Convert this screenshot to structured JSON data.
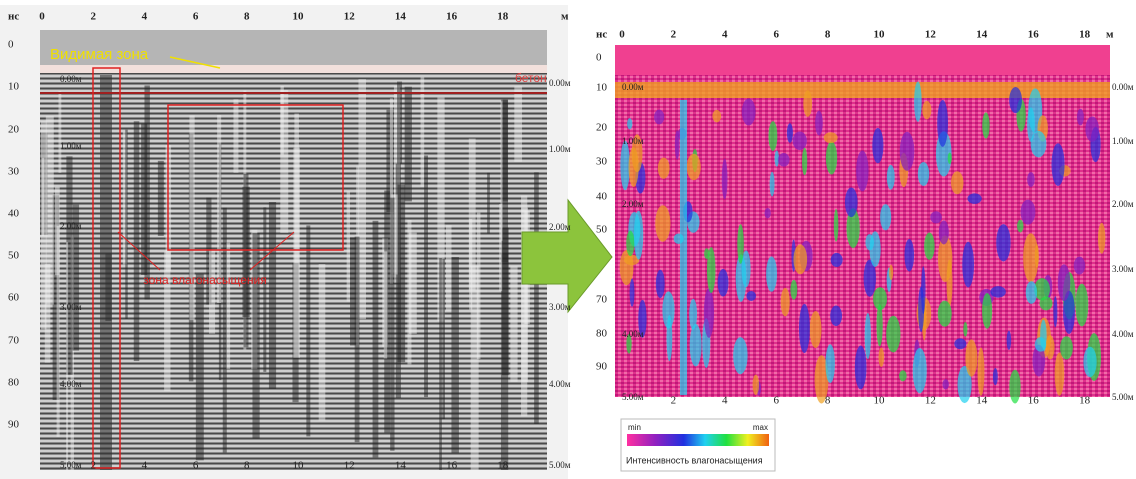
{
  "left_panel": {
    "x_unit": "м",
    "y_unit": "нс",
    "x_ticks": [
      "0",
      "2",
      "4",
      "6",
      "8",
      "10",
      "12",
      "14",
      "16",
      "18"
    ],
    "bottom_x_ticks": [
      "2",
      "4",
      "6",
      "8",
      "10",
      "12",
      "14",
      "16",
      "18"
    ],
    "y_ticks": [
      "0",
      "10",
      "20",
      "30",
      "40",
      "50",
      "60",
      "70",
      "80",
      "90"
    ],
    "depth_labels": [
      "0.00м",
      "1.00м",
      "2.00м",
      "3.00м",
      "4.00м",
      "5.00м"
    ],
    "right_depth_labels": [
      "0.00м",
      "1.00м",
      "2.00м",
      "3.00м",
      "4.00м",
      "5.00м"
    ],
    "annotations": {
      "visible_zone": "Видимая зона",
      "concrete": "бетон",
      "saturation_zone": "зона влагонасыщения"
    }
  },
  "right_panel": {
    "x_unit": "м",
    "y_unit": "нс",
    "x_ticks": [
      "0",
      "2",
      "4",
      "6",
      "8",
      "10",
      "12",
      "14",
      "16",
      "18"
    ],
    "bottom_x_ticks": [
      "2",
      "4",
      "6",
      "8",
      "10",
      "12",
      "14",
      "16",
      "18"
    ],
    "y_ticks": [
      "0",
      "10",
      "20",
      "30",
      "40",
      "50",
      "70",
      "80",
      "90"
    ],
    "depth_labels": [
      "0.00м",
      "1.00м",
      "2.00м",
      "4.00м",
      "5.00м"
    ],
    "right_depth_labels": [
      "0.00м",
      "1.00м",
      "2.00м",
      "3.00м",
      "4.00м",
      "5.00м"
    ]
  },
  "legend": {
    "min": "min",
    "max": "max",
    "caption": "Интенсивность влагонасыщения"
  }
}
